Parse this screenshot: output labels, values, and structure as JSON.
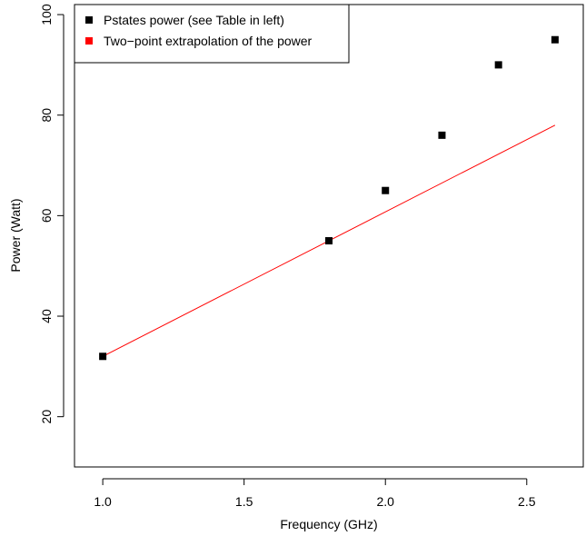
{
  "chart_data": {
    "type": "scatter",
    "title": "",
    "xlabel": "Frequency (GHz)",
    "ylabel": "Power (Watt)",
    "xlim": [
      0.9,
      2.7
    ],
    "ylim": [
      10,
      102
    ],
    "grid": false,
    "x_ticks": [
      1.0,
      1.5,
      2.0,
      2.5
    ],
    "x_tick_labels": [
      "1.0",
      "1.5",
      "2.0",
      "2.5"
    ],
    "y_ticks": [
      20,
      40,
      60,
      80,
      100
    ],
    "y_tick_labels": [
      "20",
      "40",
      "60",
      "80",
      "100"
    ],
    "legend_position": "top-left",
    "series": [
      {
        "name": "Pstates power (see Table in left)",
        "kind": "points",
        "marker": "square",
        "color": "#000000",
        "x": [
          1.0,
          1.8,
          2.0,
          2.2,
          2.4,
          2.6
        ],
        "y": [
          32,
          55,
          65,
          76,
          90,
          95
        ]
      },
      {
        "name": "Two−point extrapolation of the power",
        "kind": "line",
        "color": "#ff0000",
        "x": [
          1.0,
          2.6
        ],
        "y": [
          32,
          78
        ]
      }
    ]
  }
}
